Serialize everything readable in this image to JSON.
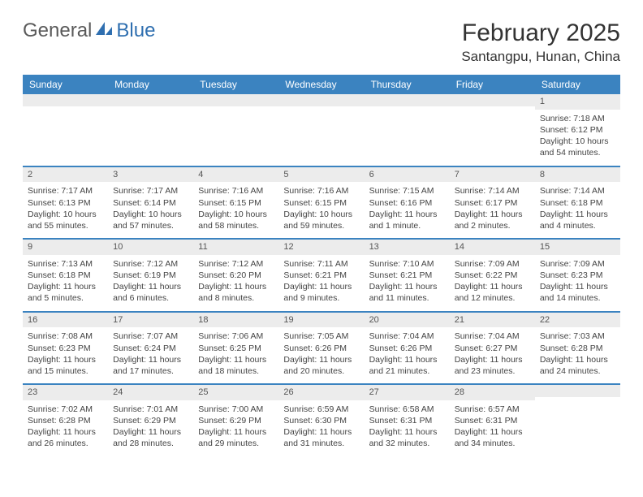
{
  "logo": {
    "text1": "General",
    "text2": "Blue"
  },
  "title": "February 2025",
  "location": "Santangpu, Hunan, China",
  "colors": {
    "header_bg": "#3b83c0",
    "header_text": "#ffffff",
    "divider": "#3b83c0",
    "daynum_bg": "#ececec",
    "text": "#444444",
    "logo_gray": "#5a5a5a",
    "logo_blue": "#2f6fb0",
    "page_bg": "#ffffff"
  },
  "typography": {
    "title_fontsize": 30,
    "location_fontsize": 17,
    "day_header_fontsize": 12,
    "cell_fontsize": 10.5
  },
  "day_headers": [
    "Sunday",
    "Monday",
    "Tuesday",
    "Wednesday",
    "Thursday",
    "Friday",
    "Saturday"
  ],
  "weeks": [
    [
      {
        "n": "",
        "sunrise": "",
        "sunset": "",
        "daylight": ""
      },
      {
        "n": "",
        "sunrise": "",
        "sunset": "",
        "daylight": ""
      },
      {
        "n": "",
        "sunrise": "",
        "sunset": "",
        "daylight": ""
      },
      {
        "n": "",
        "sunrise": "",
        "sunset": "",
        "daylight": ""
      },
      {
        "n": "",
        "sunrise": "",
        "sunset": "",
        "daylight": ""
      },
      {
        "n": "",
        "sunrise": "",
        "sunset": "",
        "daylight": ""
      },
      {
        "n": "1",
        "sunrise": "Sunrise: 7:18 AM",
        "sunset": "Sunset: 6:12 PM",
        "daylight": "Daylight: 10 hours and 54 minutes."
      }
    ],
    [
      {
        "n": "2",
        "sunrise": "Sunrise: 7:17 AM",
        "sunset": "Sunset: 6:13 PM",
        "daylight": "Daylight: 10 hours and 55 minutes."
      },
      {
        "n": "3",
        "sunrise": "Sunrise: 7:17 AM",
        "sunset": "Sunset: 6:14 PM",
        "daylight": "Daylight: 10 hours and 57 minutes."
      },
      {
        "n": "4",
        "sunrise": "Sunrise: 7:16 AM",
        "sunset": "Sunset: 6:15 PM",
        "daylight": "Daylight: 10 hours and 58 minutes."
      },
      {
        "n": "5",
        "sunrise": "Sunrise: 7:16 AM",
        "sunset": "Sunset: 6:15 PM",
        "daylight": "Daylight: 10 hours and 59 minutes."
      },
      {
        "n": "6",
        "sunrise": "Sunrise: 7:15 AM",
        "sunset": "Sunset: 6:16 PM",
        "daylight": "Daylight: 11 hours and 1 minute."
      },
      {
        "n": "7",
        "sunrise": "Sunrise: 7:14 AM",
        "sunset": "Sunset: 6:17 PM",
        "daylight": "Daylight: 11 hours and 2 minutes."
      },
      {
        "n": "8",
        "sunrise": "Sunrise: 7:14 AM",
        "sunset": "Sunset: 6:18 PM",
        "daylight": "Daylight: 11 hours and 4 minutes."
      }
    ],
    [
      {
        "n": "9",
        "sunrise": "Sunrise: 7:13 AM",
        "sunset": "Sunset: 6:18 PM",
        "daylight": "Daylight: 11 hours and 5 minutes."
      },
      {
        "n": "10",
        "sunrise": "Sunrise: 7:12 AM",
        "sunset": "Sunset: 6:19 PM",
        "daylight": "Daylight: 11 hours and 6 minutes."
      },
      {
        "n": "11",
        "sunrise": "Sunrise: 7:12 AM",
        "sunset": "Sunset: 6:20 PM",
        "daylight": "Daylight: 11 hours and 8 minutes."
      },
      {
        "n": "12",
        "sunrise": "Sunrise: 7:11 AM",
        "sunset": "Sunset: 6:21 PM",
        "daylight": "Daylight: 11 hours and 9 minutes."
      },
      {
        "n": "13",
        "sunrise": "Sunrise: 7:10 AM",
        "sunset": "Sunset: 6:21 PM",
        "daylight": "Daylight: 11 hours and 11 minutes."
      },
      {
        "n": "14",
        "sunrise": "Sunrise: 7:09 AM",
        "sunset": "Sunset: 6:22 PM",
        "daylight": "Daylight: 11 hours and 12 minutes."
      },
      {
        "n": "15",
        "sunrise": "Sunrise: 7:09 AM",
        "sunset": "Sunset: 6:23 PM",
        "daylight": "Daylight: 11 hours and 14 minutes."
      }
    ],
    [
      {
        "n": "16",
        "sunrise": "Sunrise: 7:08 AM",
        "sunset": "Sunset: 6:23 PM",
        "daylight": "Daylight: 11 hours and 15 minutes."
      },
      {
        "n": "17",
        "sunrise": "Sunrise: 7:07 AM",
        "sunset": "Sunset: 6:24 PM",
        "daylight": "Daylight: 11 hours and 17 minutes."
      },
      {
        "n": "18",
        "sunrise": "Sunrise: 7:06 AM",
        "sunset": "Sunset: 6:25 PM",
        "daylight": "Daylight: 11 hours and 18 minutes."
      },
      {
        "n": "19",
        "sunrise": "Sunrise: 7:05 AM",
        "sunset": "Sunset: 6:26 PM",
        "daylight": "Daylight: 11 hours and 20 minutes."
      },
      {
        "n": "20",
        "sunrise": "Sunrise: 7:04 AM",
        "sunset": "Sunset: 6:26 PM",
        "daylight": "Daylight: 11 hours and 21 minutes."
      },
      {
        "n": "21",
        "sunrise": "Sunrise: 7:04 AM",
        "sunset": "Sunset: 6:27 PM",
        "daylight": "Daylight: 11 hours and 23 minutes."
      },
      {
        "n": "22",
        "sunrise": "Sunrise: 7:03 AM",
        "sunset": "Sunset: 6:28 PM",
        "daylight": "Daylight: 11 hours and 24 minutes."
      }
    ],
    [
      {
        "n": "23",
        "sunrise": "Sunrise: 7:02 AM",
        "sunset": "Sunset: 6:28 PM",
        "daylight": "Daylight: 11 hours and 26 minutes."
      },
      {
        "n": "24",
        "sunrise": "Sunrise: 7:01 AM",
        "sunset": "Sunset: 6:29 PM",
        "daylight": "Daylight: 11 hours and 28 minutes."
      },
      {
        "n": "25",
        "sunrise": "Sunrise: 7:00 AM",
        "sunset": "Sunset: 6:29 PM",
        "daylight": "Daylight: 11 hours and 29 minutes."
      },
      {
        "n": "26",
        "sunrise": "Sunrise: 6:59 AM",
        "sunset": "Sunset: 6:30 PM",
        "daylight": "Daylight: 11 hours and 31 minutes."
      },
      {
        "n": "27",
        "sunrise": "Sunrise: 6:58 AM",
        "sunset": "Sunset: 6:31 PM",
        "daylight": "Daylight: 11 hours and 32 minutes."
      },
      {
        "n": "28",
        "sunrise": "Sunrise: 6:57 AM",
        "sunset": "Sunset: 6:31 PM",
        "daylight": "Daylight: 11 hours and 34 minutes."
      },
      {
        "n": "",
        "sunrise": "",
        "sunset": "",
        "daylight": ""
      }
    ]
  ]
}
